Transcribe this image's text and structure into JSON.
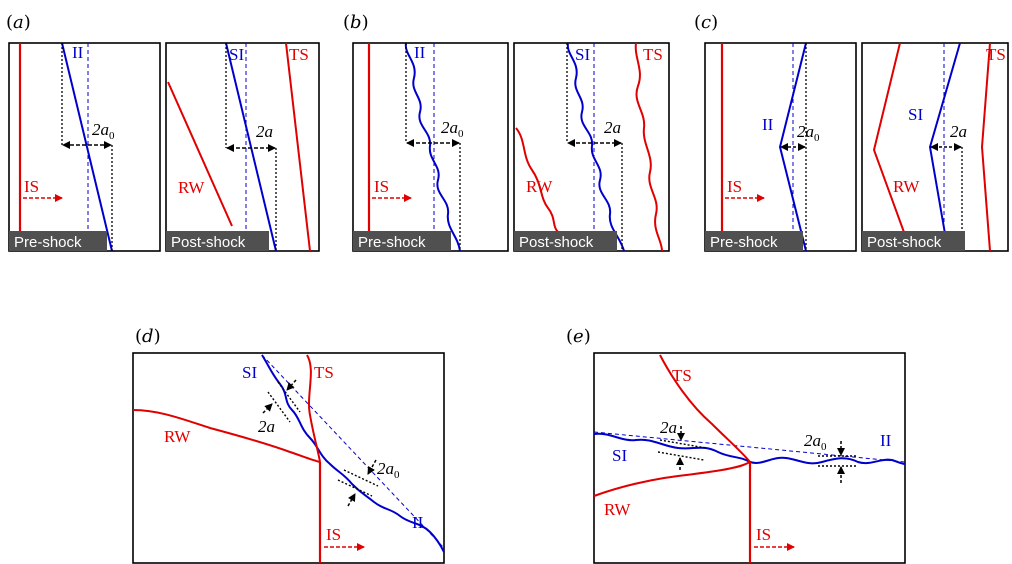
{
  "colors": {
    "red": "#e00000",
    "blue": "#0000cc",
    "label_bg": "#505050"
  },
  "labels": {
    "a": "(a)",
    "b": "(b)",
    "c": "(c)",
    "d": "(d)",
    "e": "(e)",
    "pre_shock": "Pre-shock",
    "post_shock": "Post-shock",
    "II": "II",
    "SI": "SI",
    "TS": "TS",
    "RW": "RW",
    "IS": "IS",
    "two_a0": "2a0",
    "two_a": "2a"
  }
}
